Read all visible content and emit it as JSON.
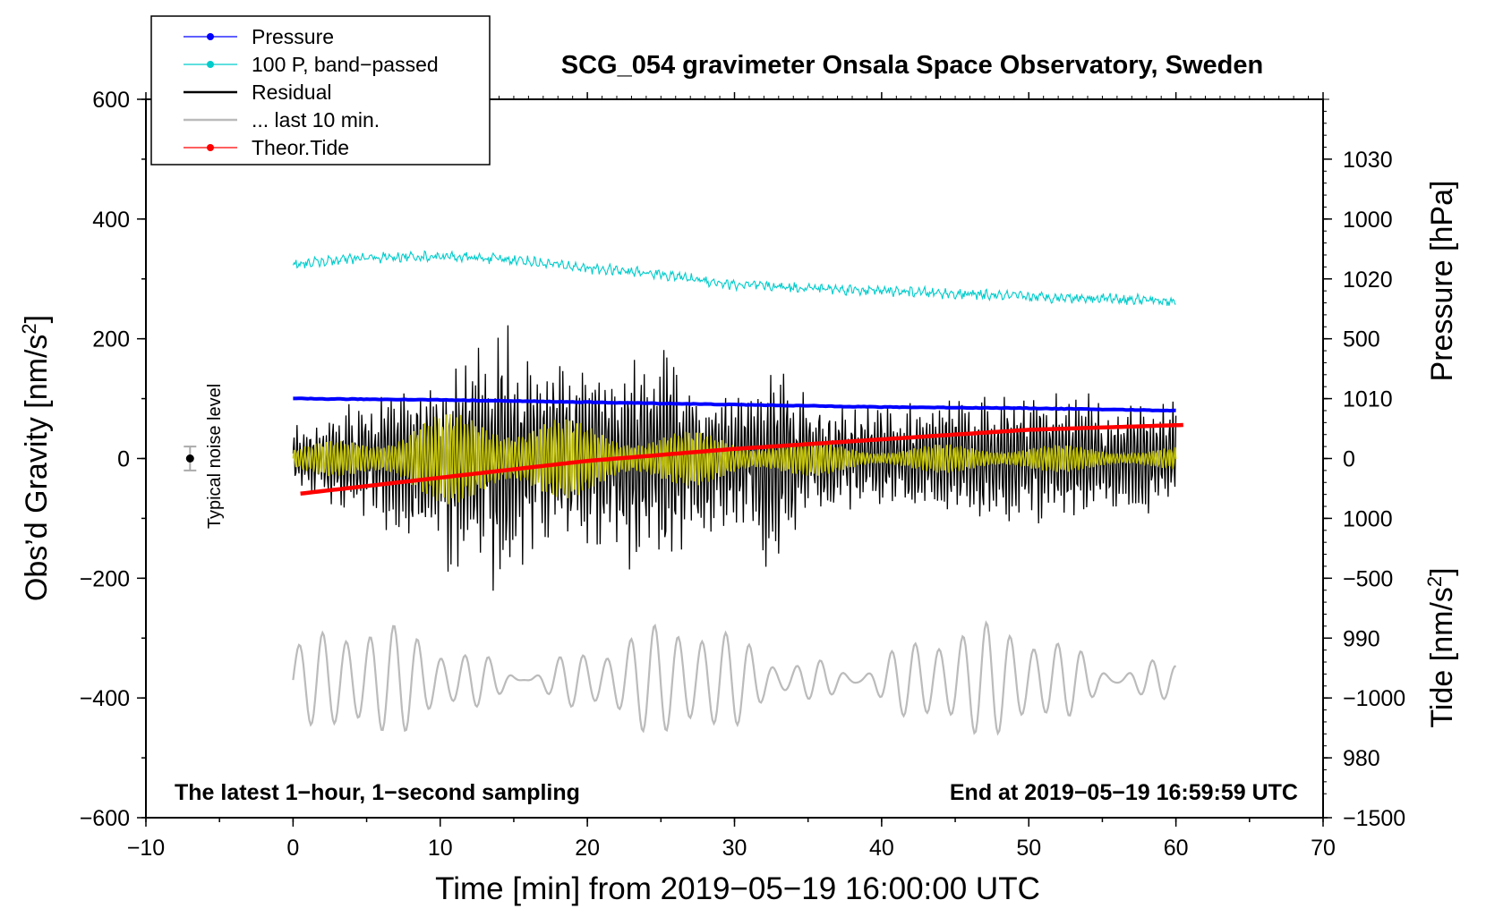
{
  "chart_data": {
    "type": "line",
    "title": "SCG_054 gravimeter Onsala Space Observatory, Sweden",
    "xlabel": "Time [min] from 2019−05−19 16:00:00 UTC",
    "ylabel_left": "Obs’d Gravity [nm/s",
    "ylabel_left_sup": "2",
    "ylabel_left_close": "]",
    "ylabel_right_pressure": "Pressure [hPa]",
    "ylabel_right_tide": "Tide [nm/s",
    "ylabel_right_tide_sup": "2",
    "ylabel_right_tide_close": "]",
    "xlim": [
      -10,
      70
    ],
    "ylim": [
      -600,
      600
    ],
    "pressure_axis_range": [
      975,
      1035
    ],
    "tide_axis_range": [
      -1500,
      1500
    ],
    "x_ticks": [
      "−10",
      "0",
      "10",
      "20",
      "30",
      "40",
      "50",
      "60",
      "70"
    ],
    "y_ticks": [
      "600",
      "400",
      "200",
      "0",
      "−200",
      "−400",
      "−600"
    ],
    "pressure_ticks": [
      "1030",
      "1020",
      "1010",
      "1000",
      "990",
      "980"
    ],
    "tide_ticks": [
      "1000",
      "500",
      "0",
      "−500",
      "−1000",
      "−1500"
    ],
    "legend": {
      "position": "top-left",
      "entries": [
        {
          "label": "Pressure",
          "color": "#0000ff",
          "style": "line-dot"
        },
        {
          "label": "100 P, band−passed",
          "color": "#00cccc",
          "style": "line-dot"
        },
        {
          "label": "Residual",
          "color": "#000000",
          "style": "line"
        },
        {
          "label": "... last 10 min.",
          "color": "#bbbbbb",
          "style": "line"
        },
        {
          "label": "Theor.Tide",
          "color": "#ff0000",
          "style": "line-dot"
        }
      ]
    },
    "annotations": {
      "noise_label": "Typical noise level",
      "noise_level": {
        "x": -7,
        "y": 0,
        "err": 20
      },
      "bottom_left": "The latest 1−hour, 1−second sampling",
      "bottom_right": "End at 2019−05−19 16:59:59 UTC"
    },
    "series": [
      {
        "name": "Pressure",
        "color": "#0000ff",
        "axis": "pressure",
        "x": [
          0,
          10,
          20,
          30,
          40,
          50,
          60
        ],
        "values": [
          1010.0,
          1009.9,
          1009.7,
          1009.5,
          1009.3,
          1009.2,
          1009.0
        ]
      },
      {
        "name": "100 P, band−passed",
        "color": "#00cccc",
        "axis": "gravity",
        "x": [
          0,
          5,
          10,
          15,
          20,
          25,
          30,
          35,
          40,
          45,
          50,
          55,
          60
        ],
        "values": [
          325,
          335,
          338,
          332,
          318,
          308,
          290,
          285,
          280,
          275,
          270,
          268,
          262
        ]
      },
      {
        "name": "Residual",
        "color": "#000000",
        "axis": "gravity",
        "x": [
          0,
          5,
          8,
          12,
          14,
          15.5,
          16,
          18,
          21,
          25.5,
          27,
          30,
          32.5,
          35,
          40,
          45,
          50,
          55,
          60
        ],
        "envelope": [
          50,
          90,
          130,
          180,
          200,
          230,
          180,
          150,
          150,
          190,
          140,
          110,
          180,
          90,
          80,
          100,
          110,
          90,
          90
        ]
      },
      {
        "name": "Residual band-passed",
        "color": "#cccc00",
        "axis": "gravity",
        "x": [
          0,
          5,
          8,
          12,
          14,
          16,
          20,
          25,
          30,
          35,
          40,
          45,
          50,
          55,
          60
        ],
        "envelope": [
          20,
          40,
          70,
          80,
          90,
          80,
          60,
          50,
          40,
          30,
          20,
          25,
          25,
          20,
          20
        ]
      },
      {
        "name": "... last 10 min.",
        "color": "#bbbbbb",
        "axis": "gravity",
        "offset": -370,
        "amplitude": 80
      },
      {
        "name": "Theor.Tide",
        "color": "#ff0000",
        "axis": "tide",
        "x": [
          0,
          10,
          20,
          30,
          40,
          50,
          60.5
        ],
        "values": [
          -150,
          -80,
          -10,
          40,
          80,
          120,
          140
        ]
      }
    ]
  }
}
